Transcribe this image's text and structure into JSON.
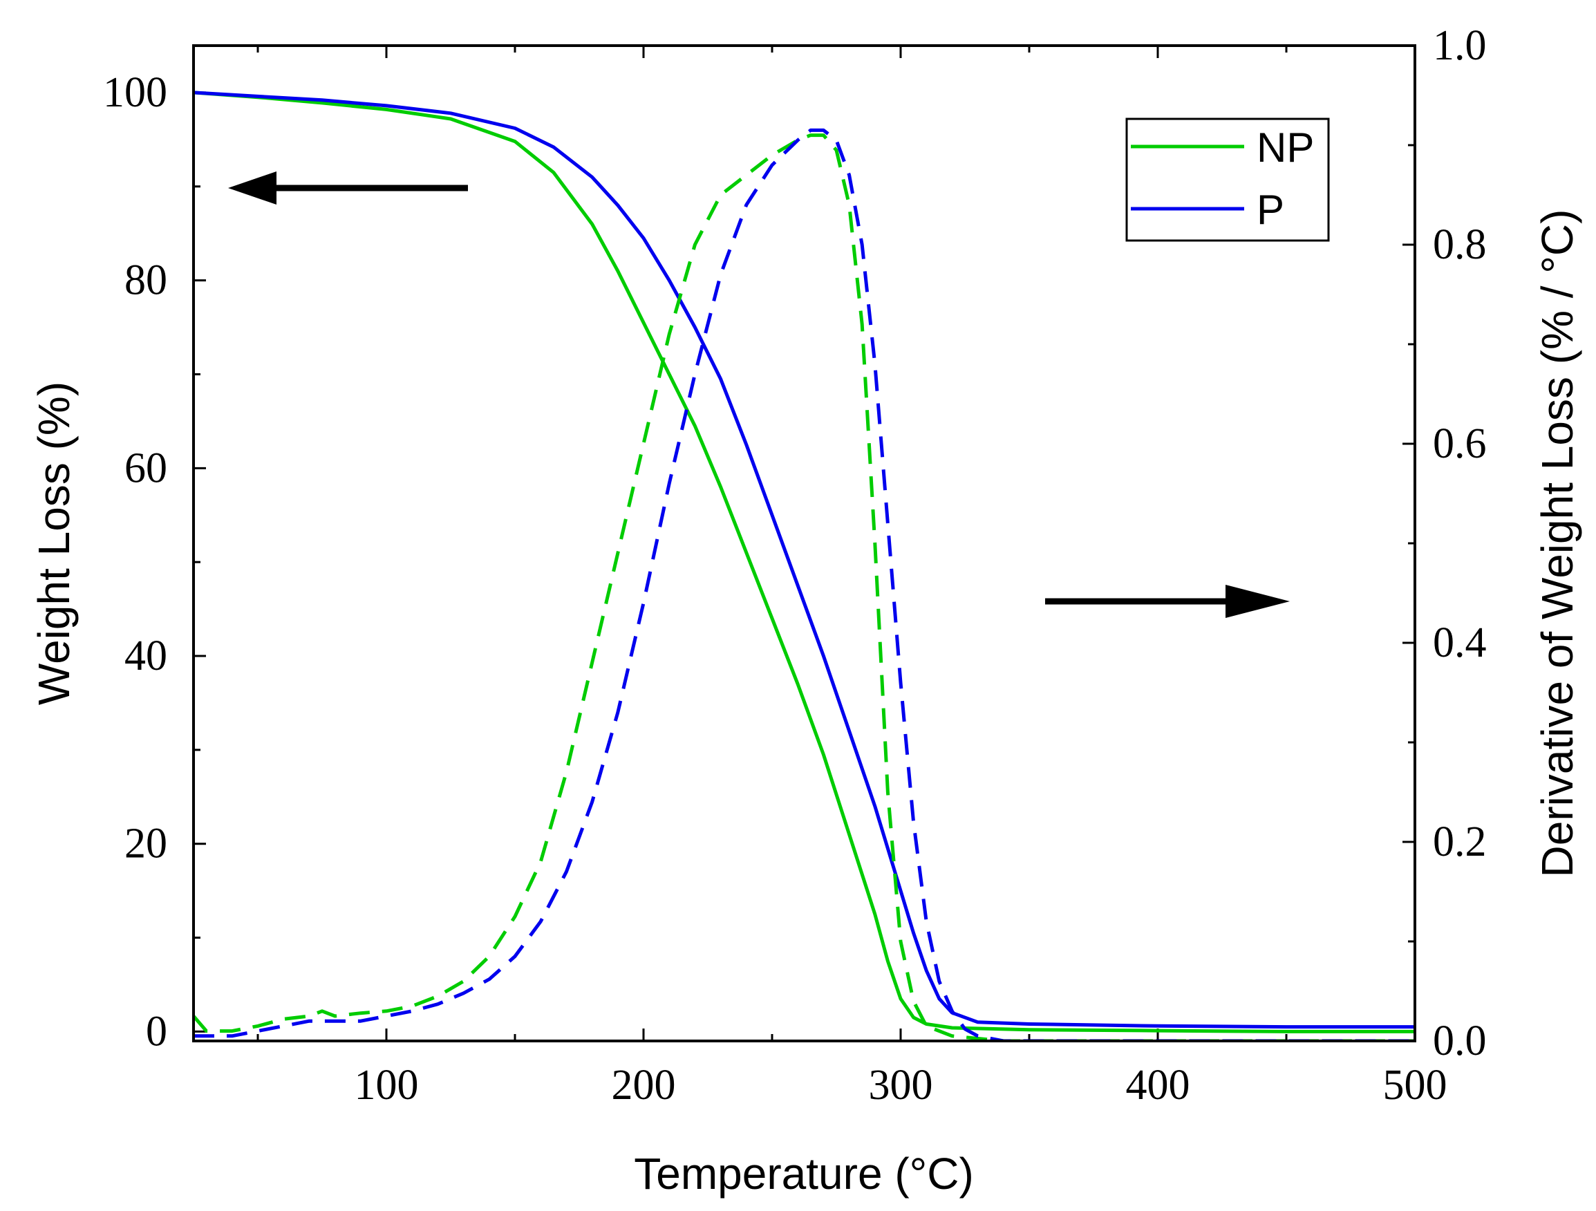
{
  "chart_data": {
    "type": "line",
    "xlabel": "Temperature (°C)",
    "ylabel": "Weight Loss (%)",
    "y2label": "Derivative of Weight Loss (% / °C)",
    "xlim": [
      25,
      500
    ],
    "ylim": [
      -1,
      105
    ],
    "y2lim": [
      0,
      1.0
    ],
    "xticks": [
      100,
      200,
      300,
      400,
      500
    ],
    "yticks": [
      0,
      20,
      40,
      60,
      80,
      100
    ],
    "y2ticks": [
      0.0,
      0.2,
      0.4,
      0.6,
      0.8,
      1.0
    ],
    "xtick_labels": [
      "100",
      "200",
      "300",
      "400",
      "500"
    ],
    "ytick_labels": [
      "0",
      "20",
      "40",
      "60",
      "80",
      "100"
    ],
    "y2tick_labels": [
      "0.0",
      "0.2",
      "0.4",
      "0.6",
      "0.8",
      "1.0"
    ],
    "legend_position": "top-right",
    "legend": [
      "NP",
      "P"
    ],
    "colors": {
      "NP": "#00cc00",
      "P": "#0000ee"
    },
    "annotations": [
      {
        "type": "arrow",
        "direction": "left",
        "meaning": "solid curves read on left axis"
      },
      {
        "type": "arrow",
        "direction": "right",
        "meaning": "dashed curves read on right axis"
      }
    ],
    "series": [
      {
        "name": "NP",
        "axis": "left",
        "style": "solid",
        "x": [
          25,
          50,
          75,
          100,
          125,
          150,
          165,
          180,
          190,
          200,
          210,
          220,
          230,
          240,
          250,
          260,
          270,
          280,
          290,
          295,
          300,
          305,
          310,
          320,
          350,
          400,
          450,
          500
        ],
        "y": [
          100,
          99.5,
          98.9,
          98.2,
          97.2,
          94.8,
          91.5,
          86,
          81,
          75.5,
          70,
          64.5,
          58,
          51,
          44,
          37,
          29.5,
          21,
          12.5,
          7.5,
          3.5,
          1.5,
          0.8,
          0.4,
          0.2,
          0.1,
          0,
          0
        ]
      },
      {
        "name": "P",
        "axis": "left",
        "style": "solid",
        "x": [
          25,
          50,
          75,
          100,
          125,
          150,
          165,
          180,
          190,
          200,
          210,
          220,
          230,
          240,
          250,
          260,
          270,
          280,
          290,
          300,
          305,
          310,
          315,
          320,
          330,
          350,
          400,
          450,
          500
        ],
        "y": [
          100,
          99.6,
          99.2,
          98.6,
          97.8,
          96.2,
          94.2,
          91,
          88,
          84.5,
          80,
          75,
          69.5,
          62.5,
          55,
          47.5,
          40,
          32,
          24,
          15,
          10.5,
          6.5,
          3.5,
          2,
          1,
          0.8,
          0.6,
          0.5,
          0.5
        ]
      },
      {
        "name": "NP",
        "axis": "right",
        "style": "dashed",
        "x": [
          25,
          30,
          40,
          50,
          60,
          70,
          75,
          80,
          90,
          100,
          110,
          120,
          130,
          140,
          150,
          160,
          170,
          180,
          190,
          200,
          210,
          220,
          230,
          240,
          250,
          260,
          265,
          270,
          275,
          280,
          285,
          290,
          295,
          300,
          305,
          310,
          320,
          340,
          400,
          500
        ],
        "y": [
          0.025,
          0.01,
          0.01,
          0.015,
          0.022,
          0.025,
          0.03,
          0.025,
          0.028,
          0.03,
          0.035,
          0.045,
          0.06,
          0.085,
          0.125,
          0.18,
          0.27,
          0.38,
          0.49,
          0.6,
          0.71,
          0.8,
          0.85,
          0.87,
          0.89,
          0.905,
          0.91,
          0.91,
          0.895,
          0.84,
          0.72,
          0.5,
          0.25,
          0.1,
          0.04,
          0.015,
          0.005,
          0,
          0,
          0
        ]
      },
      {
        "name": "P",
        "axis": "right",
        "style": "dashed",
        "x": [
          25,
          40,
          50,
          60,
          70,
          80,
          90,
          100,
          110,
          120,
          130,
          140,
          150,
          160,
          170,
          180,
          190,
          200,
          210,
          220,
          230,
          240,
          250,
          260,
          265,
          270,
          275,
          280,
          285,
          290,
          295,
          300,
          305,
          310,
          315,
          320,
          325,
          330,
          340,
          400,
          500
        ],
        "y": [
          0.005,
          0.005,
          0.01,
          0.015,
          0.02,
          0.02,
          0.02,
          0.025,
          0.03,
          0.037,
          0.048,
          0.062,
          0.085,
          0.12,
          0.17,
          0.24,
          0.33,
          0.44,
          0.56,
          0.67,
          0.77,
          0.84,
          0.88,
          0.905,
          0.915,
          0.915,
          0.905,
          0.87,
          0.8,
          0.68,
          0.52,
          0.36,
          0.22,
          0.12,
          0.06,
          0.03,
          0.012,
          0.005,
          0,
          0,
          0
        ]
      }
    ]
  }
}
